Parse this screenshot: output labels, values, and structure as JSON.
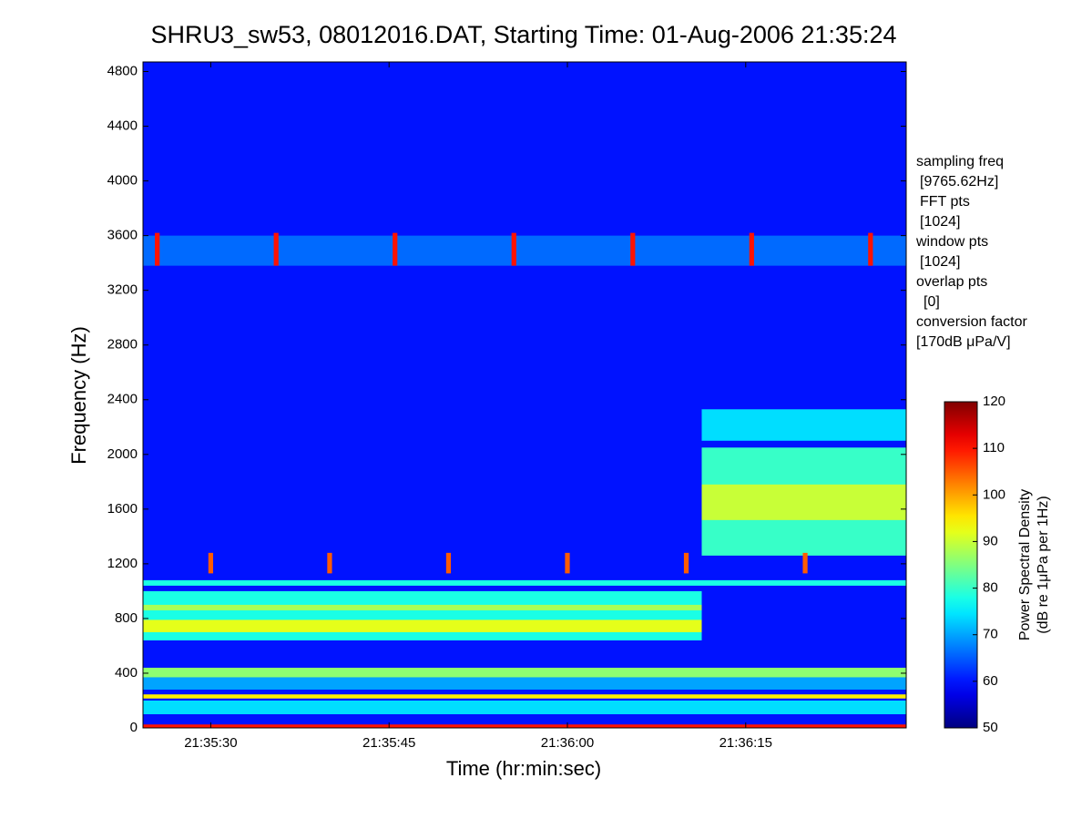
{
  "chart_data": {
    "type": "spectrogram",
    "title": "SHRU3_sw53, 08012016.DAT, Starting Time: 01-Aug-2006 21:35:24",
    "x_label": "Time (hr:min:sec)",
    "y_label": "Frequency (Hz)",
    "colorbar_label": [
      "Power Spectral Density",
      "(dB re 1μPa per 1Hz)"
    ],
    "annotations": [
      "sampling freq",
      "[9765.62Hz]",
      "FFT pts",
      "[1024]",
      "window pts",
      "[1024]",
      "overlap pts",
      "[0]",
      "conversion factor",
      "[170dB μPa/V]"
    ],
    "xlim": [
      0.3,
      64.5
    ],
    "xticks": [
      {
        "value": 6,
        "label": "21:35:30"
      },
      {
        "value": 21,
        "label": "21:35:45"
      },
      {
        "value": 36,
        "label": "21:36:00"
      },
      {
        "value": 51,
        "label": "21:36:15"
      }
    ],
    "ylim": [
      0,
      4870
    ],
    "yticks": [
      0,
      400,
      800,
      1200,
      1600,
      2000,
      2400,
      2800,
      3200,
      3600,
      4000,
      4400,
      4800
    ],
    "clim": [
      50,
      120
    ],
    "cticks": [
      50,
      60,
      70,
      80,
      90,
      100,
      110,
      120
    ],
    "colormap": "jet",
    "background_level": 60,
    "bands": [
      {
        "xmin": 0.3,
        "xmax": 64.5,
        "ymin": 3380,
        "ymax": 3600,
        "level": 66
      },
      {
        "xmin": 0.3,
        "xmax": 64.5,
        "ymin": 0,
        "ymax": 25,
        "level": 110
      },
      {
        "xmin": 0.3,
        "xmax": 64.5,
        "ymin": 100,
        "ymax": 200,
        "level": 74
      },
      {
        "xmin": 0.3,
        "xmax": 64.5,
        "ymin": 215,
        "ymax": 245,
        "level": 95
      },
      {
        "xmin": 0.3,
        "xmax": 64.5,
        "ymin": 280,
        "ymax": 370,
        "level": 70
      },
      {
        "xmin": 0.3,
        "xmax": 64.5,
        "ymin": 370,
        "ymax": 440,
        "level": 86
      },
      {
        "xmin": 0.3,
        "xmax": 47.3,
        "ymin": 640,
        "ymax": 1000,
        "level": 78
      },
      {
        "xmin": 0.3,
        "xmax": 47.3,
        "ymin": 700,
        "ymax": 790,
        "level": 92
      },
      {
        "xmin": 0.3,
        "xmax": 47.3,
        "ymin": 860,
        "ymax": 900,
        "level": 88
      },
      {
        "xmin": 0.3,
        "xmax": 64.5,
        "ymin": 1040,
        "ymax": 1080,
        "level": 78
      },
      {
        "xmin": 47.3,
        "xmax": 64.5,
        "ymin": 1260,
        "ymax": 2050,
        "level": 80
      },
      {
        "xmin": 47.3,
        "xmax": 64.5,
        "ymin": 1520,
        "ymax": 1780,
        "level": 90
      },
      {
        "xmin": 47.3,
        "xmax": 64.5,
        "ymin": 2100,
        "ymax": 2330,
        "level": 74
      },
      {
        "xmin": 1.3,
        "xmax": 1.7,
        "ymin": 3380,
        "ymax": 3620,
        "level": 110
      },
      {
        "xmin": 11.3,
        "xmax": 11.7,
        "ymin": 3380,
        "ymax": 3620,
        "level": 110
      },
      {
        "xmin": 21.3,
        "xmax": 21.7,
        "ymin": 3380,
        "ymax": 3620,
        "level": 110
      },
      {
        "xmin": 31.3,
        "xmax": 31.7,
        "ymin": 3380,
        "ymax": 3620,
        "level": 110
      },
      {
        "xmin": 41.3,
        "xmax": 41.7,
        "ymin": 3380,
        "ymax": 3620,
        "level": 110
      },
      {
        "xmin": 51.3,
        "xmax": 51.7,
        "ymin": 3380,
        "ymax": 3620,
        "level": 110
      },
      {
        "xmin": 61.3,
        "xmax": 61.7,
        "ymin": 3380,
        "ymax": 3620,
        "level": 110
      },
      {
        "xmin": 5.8,
        "xmax": 6.2,
        "ymin": 1130,
        "ymax": 1280,
        "level": 105
      },
      {
        "xmin": 15.8,
        "xmax": 16.2,
        "ymin": 1130,
        "ymax": 1280,
        "level": 105
      },
      {
        "xmin": 25.8,
        "xmax": 26.2,
        "ymin": 1130,
        "ymax": 1280,
        "level": 105
      },
      {
        "xmin": 35.8,
        "xmax": 36.2,
        "ymin": 1130,
        "ymax": 1280,
        "level": 105
      },
      {
        "xmin": 45.8,
        "xmax": 46.2,
        "ymin": 1130,
        "ymax": 1280,
        "level": 105
      },
      {
        "xmin": 55.8,
        "xmax": 56.2,
        "ymin": 1130,
        "ymax": 1280,
        "level": 105
      }
    ]
  }
}
